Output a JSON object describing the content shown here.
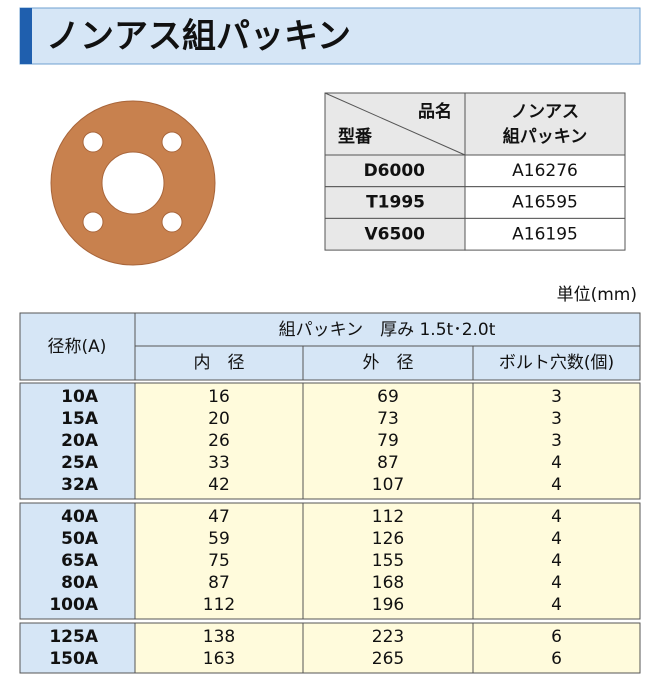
{
  "header": {
    "title": "ノンアス組パッキン"
  },
  "model_table": {
    "corner_top": "品名",
    "corner_bottom": "型番",
    "product_lines": [
      "ノンアス",
      "組パッキン"
    ],
    "rows": [
      [
        "D6000",
        "A16276"
      ],
      [
        "T1995",
        "A16595"
      ],
      [
        "V6500",
        "A16195"
      ]
    ]
  },
  "unit": "単位(mm)",
  "size_table": {
    "size_header": "径称(A)",
    "group_header": "組パッキン　厚み 1.5t･2.0t",
    "columns": [
      "内　径",
      "外　径",
      "ボルト穴数(個)"
    ],
    "groups": [
      [
        [
          "10A",
          "16",
          "69",
          "3"
        ],
        [
          "15A",
          "20",
          "73",
          "3"
        ],
        [
          "20A",
          "26",
          "79",
          "3"
        ],
        [
          "25A",
          "33",
          "87",
          "4"
        ],
        [
          "32A",
          "42",
          "107",
          "4"
        ]
      ],
      [
        [
          "40A",
          "47",
          "112",
          "4"
        ],
        [
          "50A",
          "59",
          "126",
          "4"
        ],
        [
          "65A",
          "75",
          "155",
          "4"
        ],
        [
          "80A",
          "87",
          "168",
          "4"
        ],
        [
          "100A",
          "112",
          "196",
          "4"
        ]
      ],
      [
        [
          "125A",
          "138",
          "223",
          "6"
        ],
        [
          "150A",
          "163",
          "265",
          "6"
        ]
      ]
    ]
  }
}
